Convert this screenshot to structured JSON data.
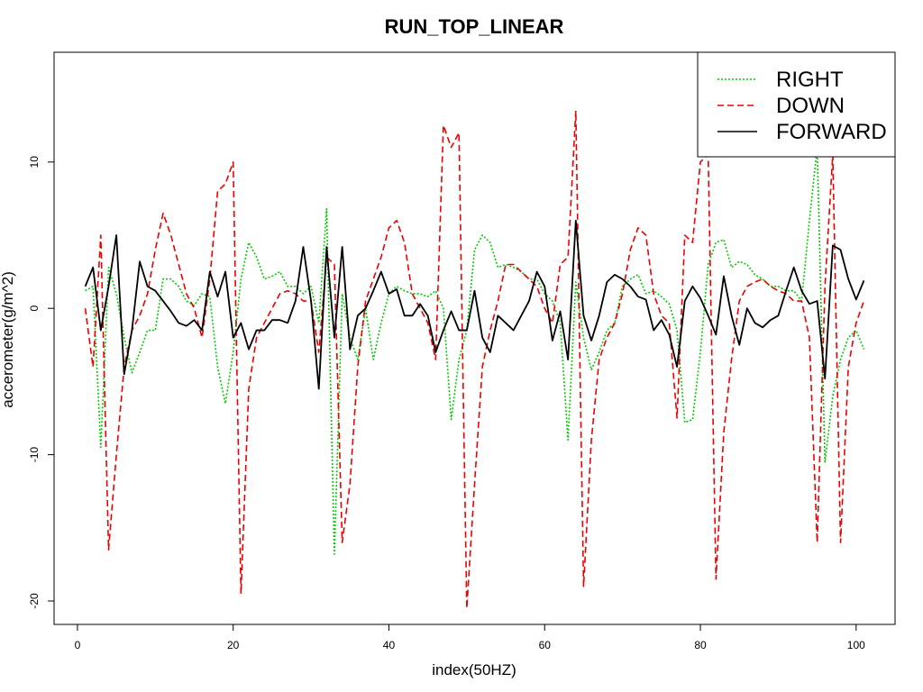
{
  "chart_data": {
    "type": "line",
    "title": "RUN_TOP_LINEAR",
    "xlabel": "index(50HZ)",
    "ylabel": "accerometer(g/m^2)",
    "xlim": [
      -3,
      105
    ],
    "ylim": [
      -21.6,
      17.5
    ],
    "xticks": [
      0,
      20,
      40,
      60,
      80,
      100
    ],
    "yticks": [
      -20,
      -10,
      0,
      10
    ],
    "legend": {
      "position": "top-right"
    },
    "grid": false,
    "series": [
      {
        "name": "RIGHT",
        "color": "#00cc00",
        "style": "dotted",
        "x": [
          1,
          2,
          3,
          4,
          5,
          6,
          7,
          8,
          9,
          10,
          11,
          12,
          13,
          14,
          15,
          16,
          17,
          18,
          19,
          20,
          21,
          22,
          23,
          24,
          25,
          26,
          27,
          28,
          29,
          30,
          31,
          32,
          33,
          34,
          35,
          36,
          37,
          38,
          39,
          40,
          41,
          42,
          43,
          44,
          45,
          46,
          47,
          48,
          49,
          50,
          51,
          52,
          53,
          54,
          55,
          56,
          57,
          58,
          59,
          60,
          61,
          62,
          63,
          64,
          65,
          66,
          67,
          68,
          69,
          70,
          71,
          72,
          73,
          74,
          75,
          76,
          77,
          78,
          79,
          80,
          81,
          82,
          83,
          84,
          85,
          86,
          87,
          88,
          89,
          90,
          91,
          92,
          93,
          94,
          95,
          96,
          97,
          98,
          99,
          100,
          101
        ],
        "y": [
          1.2,
          1.5,
          -9.5,
          2.8,
          1.0,
          -2.0,
          -4.4,
          -3.0,
          -1.5,
          -1.5,
          2.0,
          2.0,
          1.5,
          0.5,
          0.2,
          1.0,
          0.8,
          -4.0,
          -6.5,
          -3.0,
          2.0,
          4.5,
          3.5,
          2.0,
          2.2,
          2.5,
          1.5,
          1.5,
          1.0,
          1.5,
          -1.0,
          6.8,
          -16.8,
          1.0,
          -2.0,
          -3.5,
          0.0,
          -3.5,
          -1.0,
          1.0,
          1.5,
          1.2,
          1.0,
          1.0,
          0.8,
          1.2,
          0.0,
          -7.6,
          -3.5,
          -1.5,
          4.0,
          5.0,
          4.5,
          2.8,
          3.0,
          2.8,
          2.5,
          2.0,
          2.0,
          1.0,
          0.5,
          -1.0,
          -9.0,
          1.8,
          -2.0,
          -4.2,
          -3.0,
          -1.5,
          -1.0,
          1.5,
          2.0,
          2.3,
          1.0,
          1.2,
          0.8,
          0.3,
          -1.5,
          -7.8,
          -7.6,
          -3.0,
          3.0,
          4.5,
          4.7,
          2.8,
          3.2,
          3.0,
          2.3,
          2.0,
          1.5,
          1.5,
          1.2,
          1.2,
          0.5,
          6.0,
          11.0,
          -10.5,
          -6.0,
          -3.5,
          -2.0,
          -1.5,
          -2.8
        ]
      },
      {
        "name": "DOWN",
        "color": "#ee0000",
        "style": "dashed",
        "x": [
          1,
          2,
          3,
          4,
          5,
          6,
          7,
          8,
          9,
          10,
          11,
          12,
          13,
          14,
          15,
          16,
          17,
          18,
          19,
          20,
          21,
          22,
          23,
          24,
          25,
          26,
          27,
          28,
          29,
          30,
          31,
          32,
          33,
          34,
          35,
          36,
          37,
          38,
          39,
          40,
          41,
          42,
          43,
          44,
          45,
          46,
          47,
          48,
          49,
          50,
          51,
          52,
          53,
          54,
          55,
          56,
          57,
          58,
          59,
          60,
          61,
          62,
          63,
          64,
          65,
          66,
          67,
          68,
          69,
          70,
          71,
          72,
          73,
          74,
          75,
          76,
          77,
          78,
          79,
          80,
          81,
          82,
          83,
          84,
          85,
          86,
          87,
          88,
          89,
          90,
          91,
          92,
          93,
          94,
          95,
          96,
          97,
          98,
          99,
          100,
          101
        ],
        "y": [
          0.0,
          -4.0,
          5.0,
          -16.5,
          -10.0,
          -4.0,
          -1.5,
          -0.5,
          1.0,
          4.0,
          6.5,
          5.0,
          3.0,
          1.0,
          0.0,
          -2.0,
          2.0,
          8.0,
          8.5,
          10.0,
          -19.5,
          -5.5,
          -2.0,
          -1.0,
          0.0,
          1.0,
          1.2,
          1.0,
          0.5,
          0.5,
          -3.0,
          3.5,
          3.0,
          -16.0,
          -12.0,
          -4.0,
          0.5,
          2.0,
          3.5,
          5.5,
          6.0,
          4.5,
          1.0,
          0.0,
          -1.0,
          -3.5,
          12.5,
          11.0,
          12.0,
          -20.5,
          -12.0,
          -4.0,
          -1.5,
          0.5,
          3.0,
          3.0,
          2.5,
          2.0,
          1.5,
          0.0,
          -1.0,
          3.0,
          3.5,
          13.5,
          -19.0,
          -9.0,
          -3.5,
          -2.0,
          -1.0,
          1.0,
          4.0,
          5.5,
          5.0,
          1.0,
          -0.5,
          -1.0,
          -7.5,
          5.0,
          4.5,
          10.0,
          10.5,
          -18.5,
          -8.5,
          -3.5,
          0.5,
          1.5,
          1.8,
          2.0,
          1.5,
          1.2,
          1.0,
          0.5,
          0.5,
          -2.0,
          -16.0,
          1.5,
          10.5,
          -16.0,
          -4.0,
          -1.0,
          0.5
        ]
      },
      {
        "name": "FORWARD",
        "color": "#000000",
        "style": "solid",
        "x": [
          1,
          2,
          3,
          4,
          5,
          6,
          7,
          8,
          9,
          10,
          11,
          12,
          13,
          14,
          15,
          16,
          17,
          18,
          19,
          20,
          21,
          22,
          23,
          24,
          25,
          26,
          27,
          28,
          29,
          30,
          31,
          32,
          33,
          34,
          35,
          36,
          37,
          38,
          39,
          40,
          41,
          42,
          43,
          44,
          45,
          46,
          47,
          48,
          49,
          50,
          51,
          52,
          53,
          54,
          55,
          56,
          57,
          58,
          59,
          60,
          61,
          62,
          63,
          64,
          65,
          66,
          67,
          68,
          69,
          70,
          71,
          72,
          73,
          74,
          75,
          76,
          77,
          78,
          79,
          80,
          81,
          82,
          83,
          84,
          85,
          86,
          87,
          88,
          89,
          90,
          91,
          92,
          93,
          94,
          95,
          96,
          97,
          98,
          99,
          100,
          101
        ],
        "y": [
          1.5,
          2.8,
          -1.5,
          1.5,
          5.0,
          -4.5,
          -1.5,
          3.2,
          1.5,
          1.2,
          0.5,
          -0.2,
          -1.0,
          -1.2,
          -0.8,
          -1.5,
          2.5,
          0.8,
          2.5,
          -2.0,
          -1.0,
          -2.8,
          -1.5,
          -1.5,
          -0.8,
          -0.8,
          -1.0,
          0.5,
          4.2,
          0.5,
          -5.5,
          4.2,
          -2.0,
          4.2,
          -2.8,
          -0.5,
          0.0,
          1.2,
          2.5,
          1.0,
          1.3,
          -0.5,
          -0.5,
          0.3,
          -0.5,
          -3.0,
          -1.5,
          -0.2,
          -1.5,
          -1.5,
          1.2,
          -2.0,
          -3.0,
          -0.5,
          -1.0,
          -1.5,
          -0.5,
          0.5,
          2.5,
          1.5,
          -2.2,
          -0.2,
          -3.5,
          6.0,
          -0.5,
          -2.2,
          -0.5,
          1.8,
          2.3,
          2.0,
          1.5,
          0.8,
          0.6,
          -1.5,
          -0.8,
          -1.8,
          -4.0,
          0.5,
          1.5,
          0.7,
          -0.5,
          -1.8,
          2.2,
          -0.5,
          -2.5,
          0.0,
          -1.0,
          -1.3,
          -0.8,
          -0.5,
          1.2,
          2.8,
          1.2,
          0.3,
          0.5,
          -4.8,
          4.3,
          4.0,
          2.0,
          0.6,
          1.9
        ]
      }
    ]
  }
}
